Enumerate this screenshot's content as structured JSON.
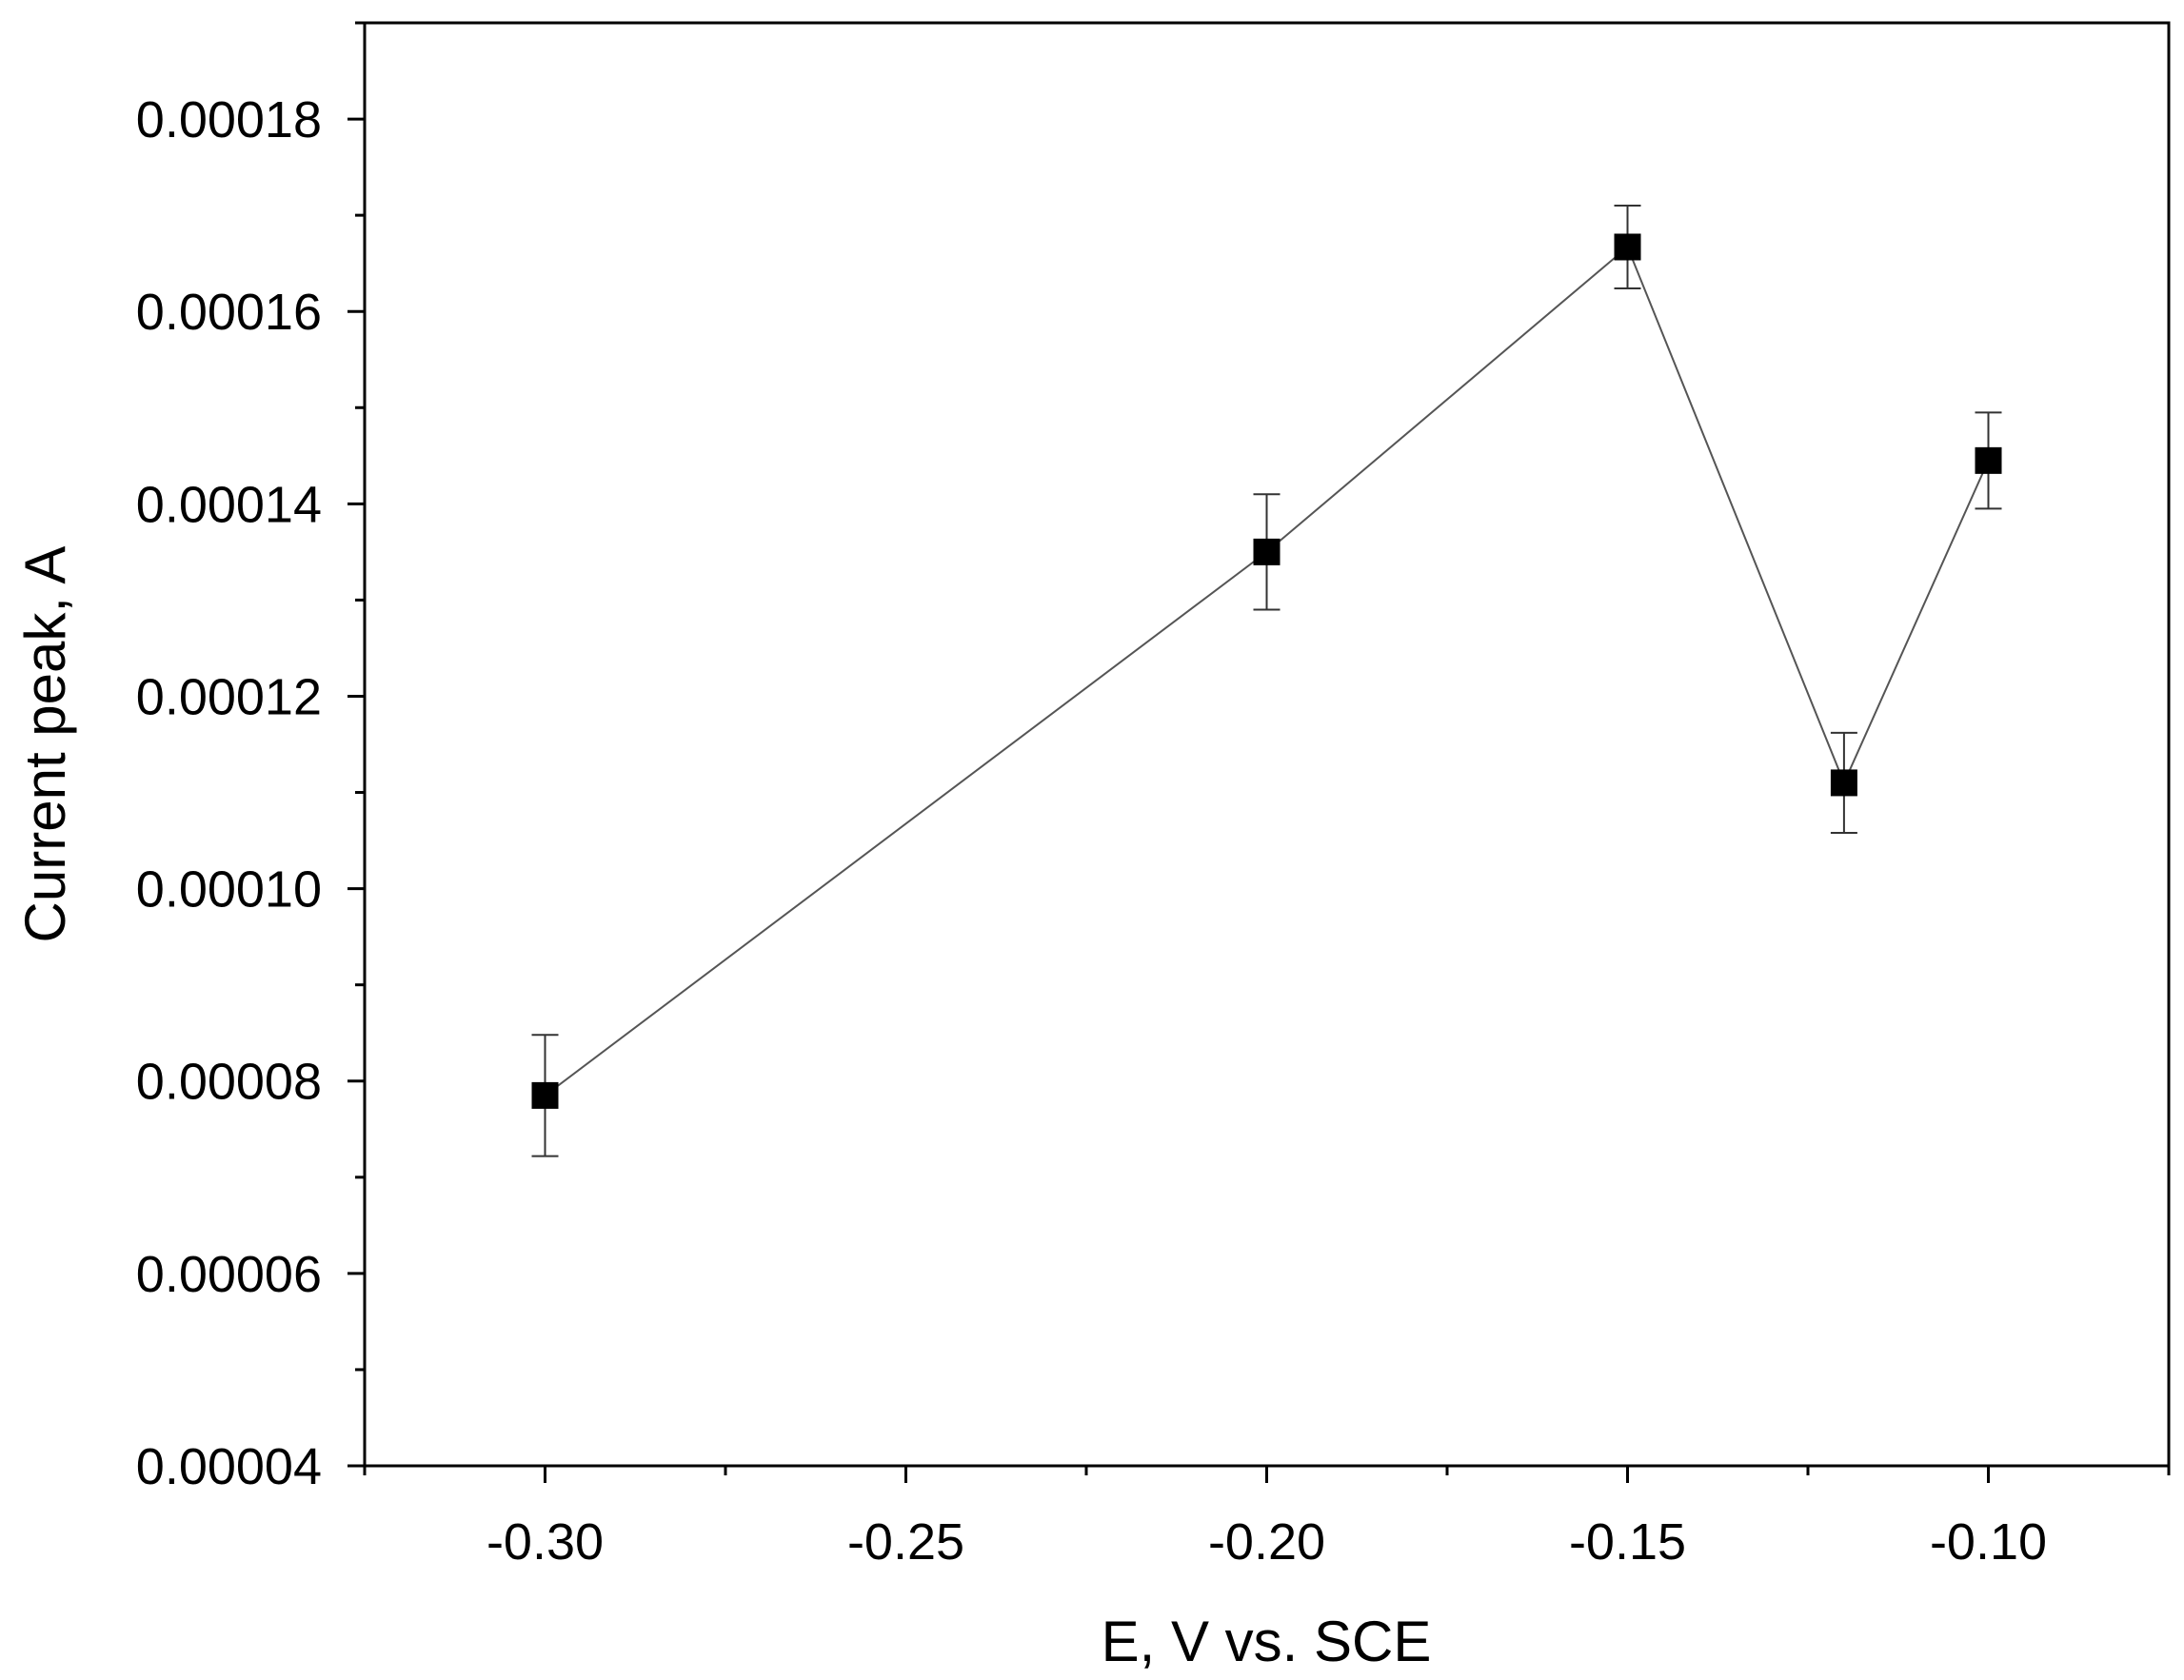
{
  "chart_data": {
    "type": "line",
    "title": "",
    "xlabel": "E, V vs. SCE",
    "ylabel": "Current peak, A",
    "xlim": [
      -0.325,
      -0.075
    ],
    "ylim": [
      4e-05,
      0.00019
    ],
    "x_ticks": [
      -0.3,
      -0.25,
      -0.2,
      -0.15,
      -0.1
    ],
    "x_tick_labels": [
      "-0.30",
      "-0.25",
      "-0.20",
      "-0.15",
      "-0.10"
    ],
    "x_minor_ticks": [
      -0.325,
      -0.275,
      -0.225,
      -0.175,
      -0.125,
      -0.075
    ],
    "y_ticks": [
      4e-05,
      6e-05,
      8e-05,
      0.0001,
      0.00012,
      0.00014,
      0.00016,
      0.00018
    ],
    "y_tick_labels": [
      "0.00004",
      "0.00006",
      "0.00008",
      "0.00010",
      "0.00012",
      "0.00014",
      "0.00016",
      "0.00018"
    ],
    "y_minor_ticks": [
      5e-05,
      7e-05,
      9e-05,
      0.00011,
      0.00013,
      0.00015,
      0.00017,
      0.00019
    ],
    "grid": false,
    "legend": "none",
    "series": [
      {
        "name": "Current peak",
        "color": "#000000",
        "marker": "square",
        "x": [
          -0.3,
          -0.2,
          -0.15,
          -0.12,
          -0.1
        ],
        "y": [
          7.85e-05,
          0.000135,
          0.0001667,
          0.000111,
          0.0001445
        ],
        "error": [
          6.3e-06,
          6e-06,
          4.3e-06,
          5.2e-06,
          5e-06
        ]
      }
    ]
  }
}
